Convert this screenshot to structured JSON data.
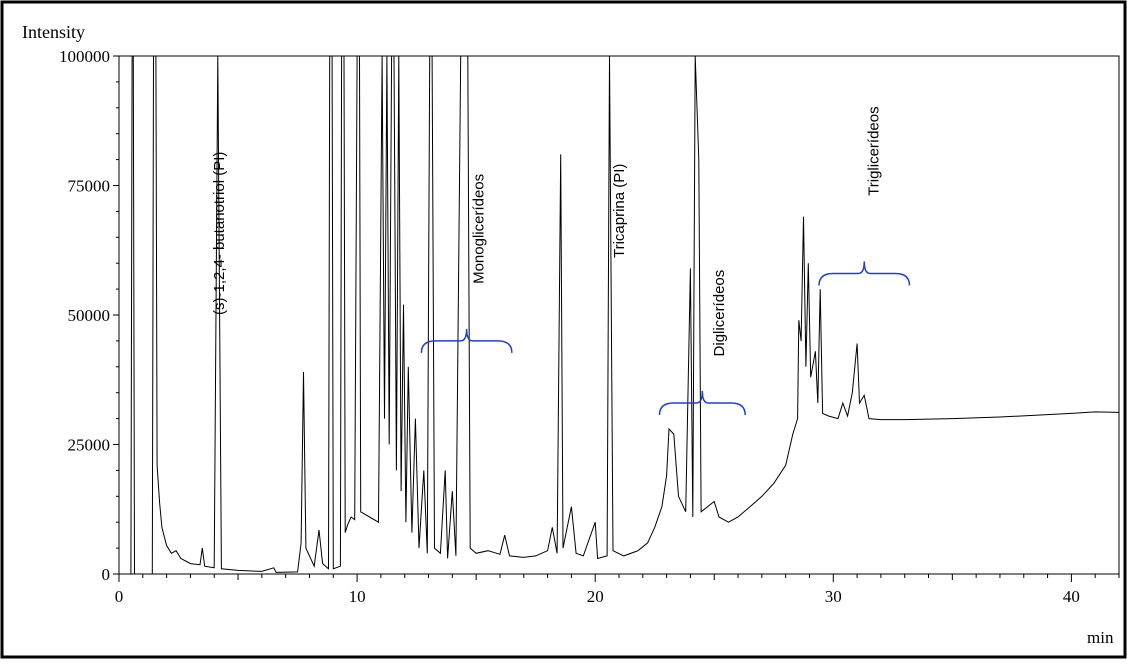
{
  "chart_data": {
    "type": "line",
    "ylabel": "Intensity",
    "xlabel": "min",
    "xlim": [
      0,
      42
    ],
    "ylim": [
      0,
      100000
    ],
    "x_ticks": [
      0,
      10,
      20,
      30,
      40
    ],
    "x_tick_labels": [
      "0",
      "10",
      "20",
      "30",
      "40"
    ],
    "y_ticks": [
      0,
      25000,
      50000,
      75000,
      100000
    ],
    "y_tick_labels": [
      "0",
      "25000",
      "50000",
      "75000",
      "100000"
    ],
    "line_color": "#000000",
    "bracket_color": "#1f3fd6",
    "series": [
      {
        "points": [
          [
            0,
            0
          ],
          [
            0.5,
            0
          ],
          [
            0.55,
            100000
          ],
          [
            0.6,
            100000
          ],
          [
            0.65,
            0
          ],
          [
            1.4,
            0
          ],
          [
            1.45,
            100000
          ],
          [
            1.55,
            100000
          ],
          [
            1.6,
            21000
          ],
          [
            1.7,
            14000
          ],
          [
            1.8,
            9000
          ],
          [
            2.0,
            5500
          ],
          [
            2.2,
            4000
          ],
          [
            2.4,
            4500
          ],
          [
            2.6,
            3000
          ],
          [
            3.0,
            2000
          ],
          [
            3.4,
            1800
          ],
          [
            3.5,
            5000
          ],
          [
            3.6,
            1500
          ],
          [
            4.0,
            1200
          ],
          [
            4.15,
            100000
          ],
          [
            4.3,
            1000
          ],
          [
            5.0,
            700
          ],
          [
            6.0,
            500
          ],
          [
            6.5,
            1200
          ],
          [
            6.6,
            300
          ],
          [
            7.5,
            400
          ],
          [
            7.65,
            6000
          ],
          [
            7.75,
            39000
          ],
          [
            7.85,
            5000
          ],
          [
            8.2,
            1500
          ],
          [
            8.4,
            8500
          ],
          [
            8.55,
            2000
          ],
          [
            8.8,
            1000
          ],
          [
            8.85,
            100000
          ],
          [
            8.95,
            100000
          ],
          [
            9.0,
            1000
          ],
          [
            9.3,
            1500
          ],
          [
            9.35,
            100000
          ],
          [
            9.45,
            100000
          ],
          [
            9.5,
            8000
          ],
          [
            9.6,
            9500
          ],
          [
            9.75,
            11000
          ],
          [
            9.9,
            10500
          ],
          [
            10.0,
            100000
          ],
          [
            10.1,
            100000
          ],
          [
            10.15,
            12000
          ],
          [
            10.9,
            10000
          ],
          [
            11.05,
            100000
          ],
          [
            11.15,
            30000
          ],
          [
            11.25,
            100000
          ],
          [
            11.35,
            25000
          ],
          [
            11.45,
            100000
          ],
          [
            11.55,
            100000
          ],
          [
            11.65,
            20000
          ],
          [
            11.75,
            100000
          ],
          [
            11.85,
            16000
          ],
          [
            11.95,
            52000
          ],
          [
            12.05,
            10000
          ],
          [
            12.15,
            40000
          ],
          [
            12.3,
            8000
          ],
          [
            12.45,
            30000
          ],
          [
            12.6,
            5000
          ],
          [
            12.8,
            20000
          ],
          [
            12.95,
            4000
          ],
          [
            13.05,
            100000
          ],
          [
            13.15,
            100000
          ],
          [
            13.25,
            5000
          ],
          [
            13.5,
            4000
          ],
          [
            13.7,
            20000
          ],
          [
            13.8,
            3000
          ],
          [
            14.0,
            16000
          ],
          [
            14.15,
            3500
          ],
          [
            14.35,
            100000
          ],
          [
            14.5,
            100000
          ],
          [
            14.65,
            100000
          ],
          [
            14.75,
            5000
          ],
          [
            15.0,
            4000
          ],
          [
            15.5,
            4500
          ],
          [
            16.0,
            3800
          ],
          [
            16.2,
            7500
          ],
          [
            16.4,
            3500
          ],
          [
            17.0,
            3200
          ],
          [
            17.5,
            3500
          ],
          [
            18.0,
            4500
          ],
          [
            18.2,
            9000
          ],
          [
            18.4,
            4000
          ],
          [
            18.55,
            81000
          ],
          [
            18.65,
            5000
          ],
          [
            19.0,
            13000
          ],
          [
            19.2,
            4000
          ],
          [
            19.5,
            3500
          ],
          [
            20.0,
            10000
          ],
          [
            20.1,
            3000
          ],
          [
            20.5,
            3500
          ],
          [
            20.6,
            100000
          ],
          [
            20.75,
            4500
          ],
          [
            21.2,
            3500
          ],
          [
            21.8,
            4500
          ],
          [
            22.2,
            6000
          ],
          [
            22.5,
            9000
          ],
          [
            22.8,
            13000
          ],
          [
            23.0,
            19000
          ],
          [
            23.1,
            28000
          ],
          [
            23.3,
            27000
          ],
          [
            23.5,
            15000
          ],
          [
            23.8,
            12000
          ],
          [
            24.0,
            59000
          ],
          [
            24.1,
            11000
          ],
          [
            24.2,
            100000
          ],
          [
            24.35,
            80000
          ],
          [
            24.45,
            12000
          ],
          [
            25.0,
            14000
          ],
          [
            25.2,
            11000
          ],
          [
            25.6,
            10000
          ],
          [
            26.0,
            11000
          ],
          [
            26.5,
            13000
          ],
          [
            27.0,
            15000
          ],
          [
            27.5,
            17500
          ],
          [
            28.0,
            21000
          ],
          [
            28.3,
            27000
          ],
          [
            28.5,
            30000
          ],
          [
            28.55,
            49000
          ],
          [
            28.65,
            45000
          ],
          [
            28.75,
            69000
          ],
          [
            28.85,
            40000
          ],
          [
            28.95,
            60000
          ],
          [
            29.05,
            38000
          ],
          [
            29.25,
            43000
          ],
          [
            29.35,
            33000
          ],
          [
            29.45,
            55000
          ],
          [
            29.55,
            31000
          ],
          [
            29.8,
            30500
          ],
          [
            30.2,
            30000
          ],
          [
            30.4,
            33000
          ],
          [
            30.6,
            30500
          ],
          [
            30.8,
            35000
          ],
          [
            31.0,
            44500
          ],
          [
            31.1,
            33000
          ],
          [
            31.3,
            34500
          ],
          [
            31.5,
            30000
          ],
          [
            32.0,
            29800
          ],
          [
            33.0,
            29800
          ],
          [
            35.0,
            30000
          ],
          [
            37.0,
            30300
          ],
          [
            40.0,
            31000
          ],
          [
            41.0,
            31300
          ],
          [
            42.0,
            31200
          ]
        ]
      }
    ],
    "annotations": [
      {
        "text": "(s)-1,2,4- butanotriol (PI)",
        "x": 4.4,
        "y": 50000
      },
      {
        "text": "Monoglicerídeos",
        "x": 15.3,
        "y": 56000
      },
      {
        "text": "Tricaprina (PI)",
        "x": 21.2,
        "y": 61000
      },
      {
        "text": "Diglicerídeos",
        "x": 25.4,
        "y": 42000
      },
      {
        "text": "Triglicerídeos",
        "x": 31.9,
        "y": 73000
      }
    ],
    "brackets": [
      {
        "x_start": 12.7,
        "x_end": 16.5,
        "y": 45000
      },
      {
        "x_start": 22.7,
        "x_end": 26.3,
        "y": 33000
      },
      {
        "x_start": 29.4,
        "x_end": 33.2,
        "y": 58000
      }
    ]
  }
}
